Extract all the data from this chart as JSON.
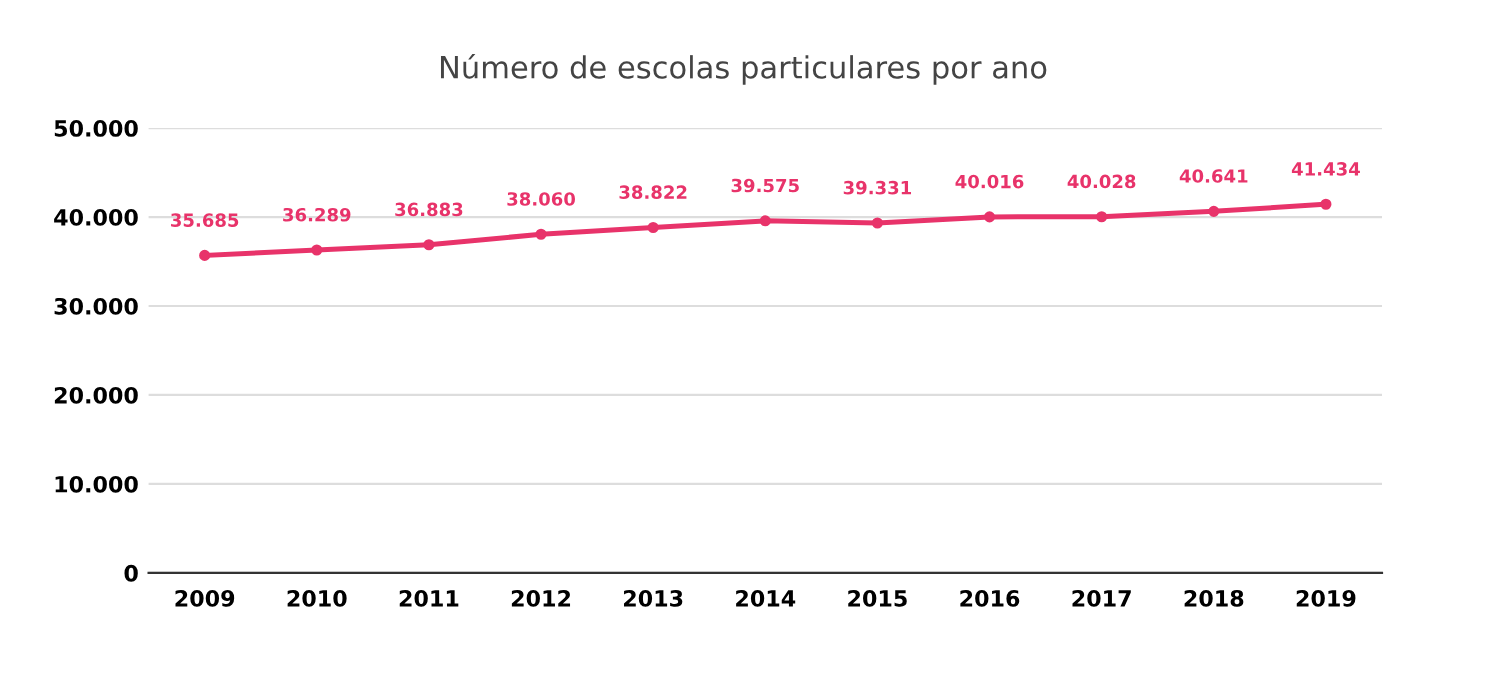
{
  "chart_data": {
    "type": "line",
    "title": "Número de escolas particulares por ano",
    "categories": [
      "2009",
      "2010",
      "2011",
      "2012",
      "2013",
      "2014",
      "2015",
      "2016",
      "2017",
      "2018",
      "2019"
    ],
    "series": [
      {
        "color": "#e8336a",
        "values": [
          35685,
          36289,
          36883,
          38060,
          38822,
          39575,
          39331,
          40016,
          40028,
          40641,
          41434
        ],
        "value_labels": [
          "35.685",
          "36.289",
          "36.883",
          "38.060",
          "38.822",
          "39.575",
          "39.331",
          "40.016",
          "40.028",
          "40.641",
          "41.434"
        ]
      }
    ],
    "ylim": [
      0,
      50000
    ],
    "yticks": [
      0,
      {
        "value": 10000,
        "label": "10.000"
      },
      {
        "value": 20000,
        "label": "20.000"
      },
      {
        "value": 30000,
        "label": "30.000"
      },
      {
        "value": 40000,
        "label": "40.000"
      },
      {
        "value": 50000,
        "label": "50.000"
      }
    ],
    "grid": "y",
    "marker": "circle",
    "line_style": "solid",
    "legend": false
  }
}
